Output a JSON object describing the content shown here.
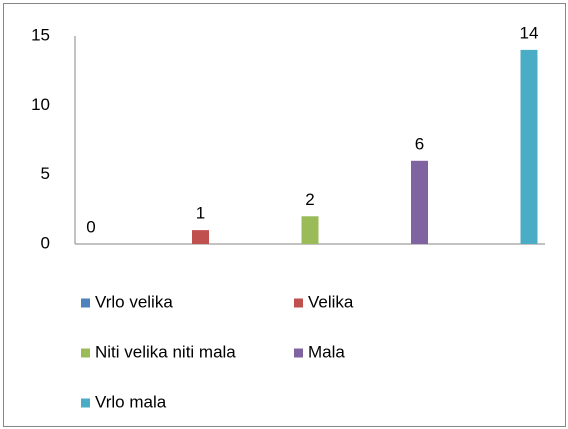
{
  "chart_data": {
    "type": "bar",
    "categories": [
      null
    ],
    "series": [
      {
        "name": "Vrlo velika",
        "color": "#4f81bd",
        "values": [
          0
        ]
      },
      {
        "name": "Velika",
        "color": "#c0504d",
        "values": [
          1
        ]
      },
      {
        "name": "Niti velika niti mala",
        "color": "#9bbb59",
        "values": [
          2
        ]
      },
      {
        "name": "Mala",
        "color": "#8064a2",
        "values": [
          6
        ]
      },
      {
        "name": "Vrlo mala",
        "color": "#4bacc6",
        "values": [
          14
        ]
      }
    ],
    "ylim": [
      0,
      15
    ],
    "yticks": [
      0,
      5,
      10,
      15
    ],
    "grid": false,
    "legend": "bottom"
  }
}
